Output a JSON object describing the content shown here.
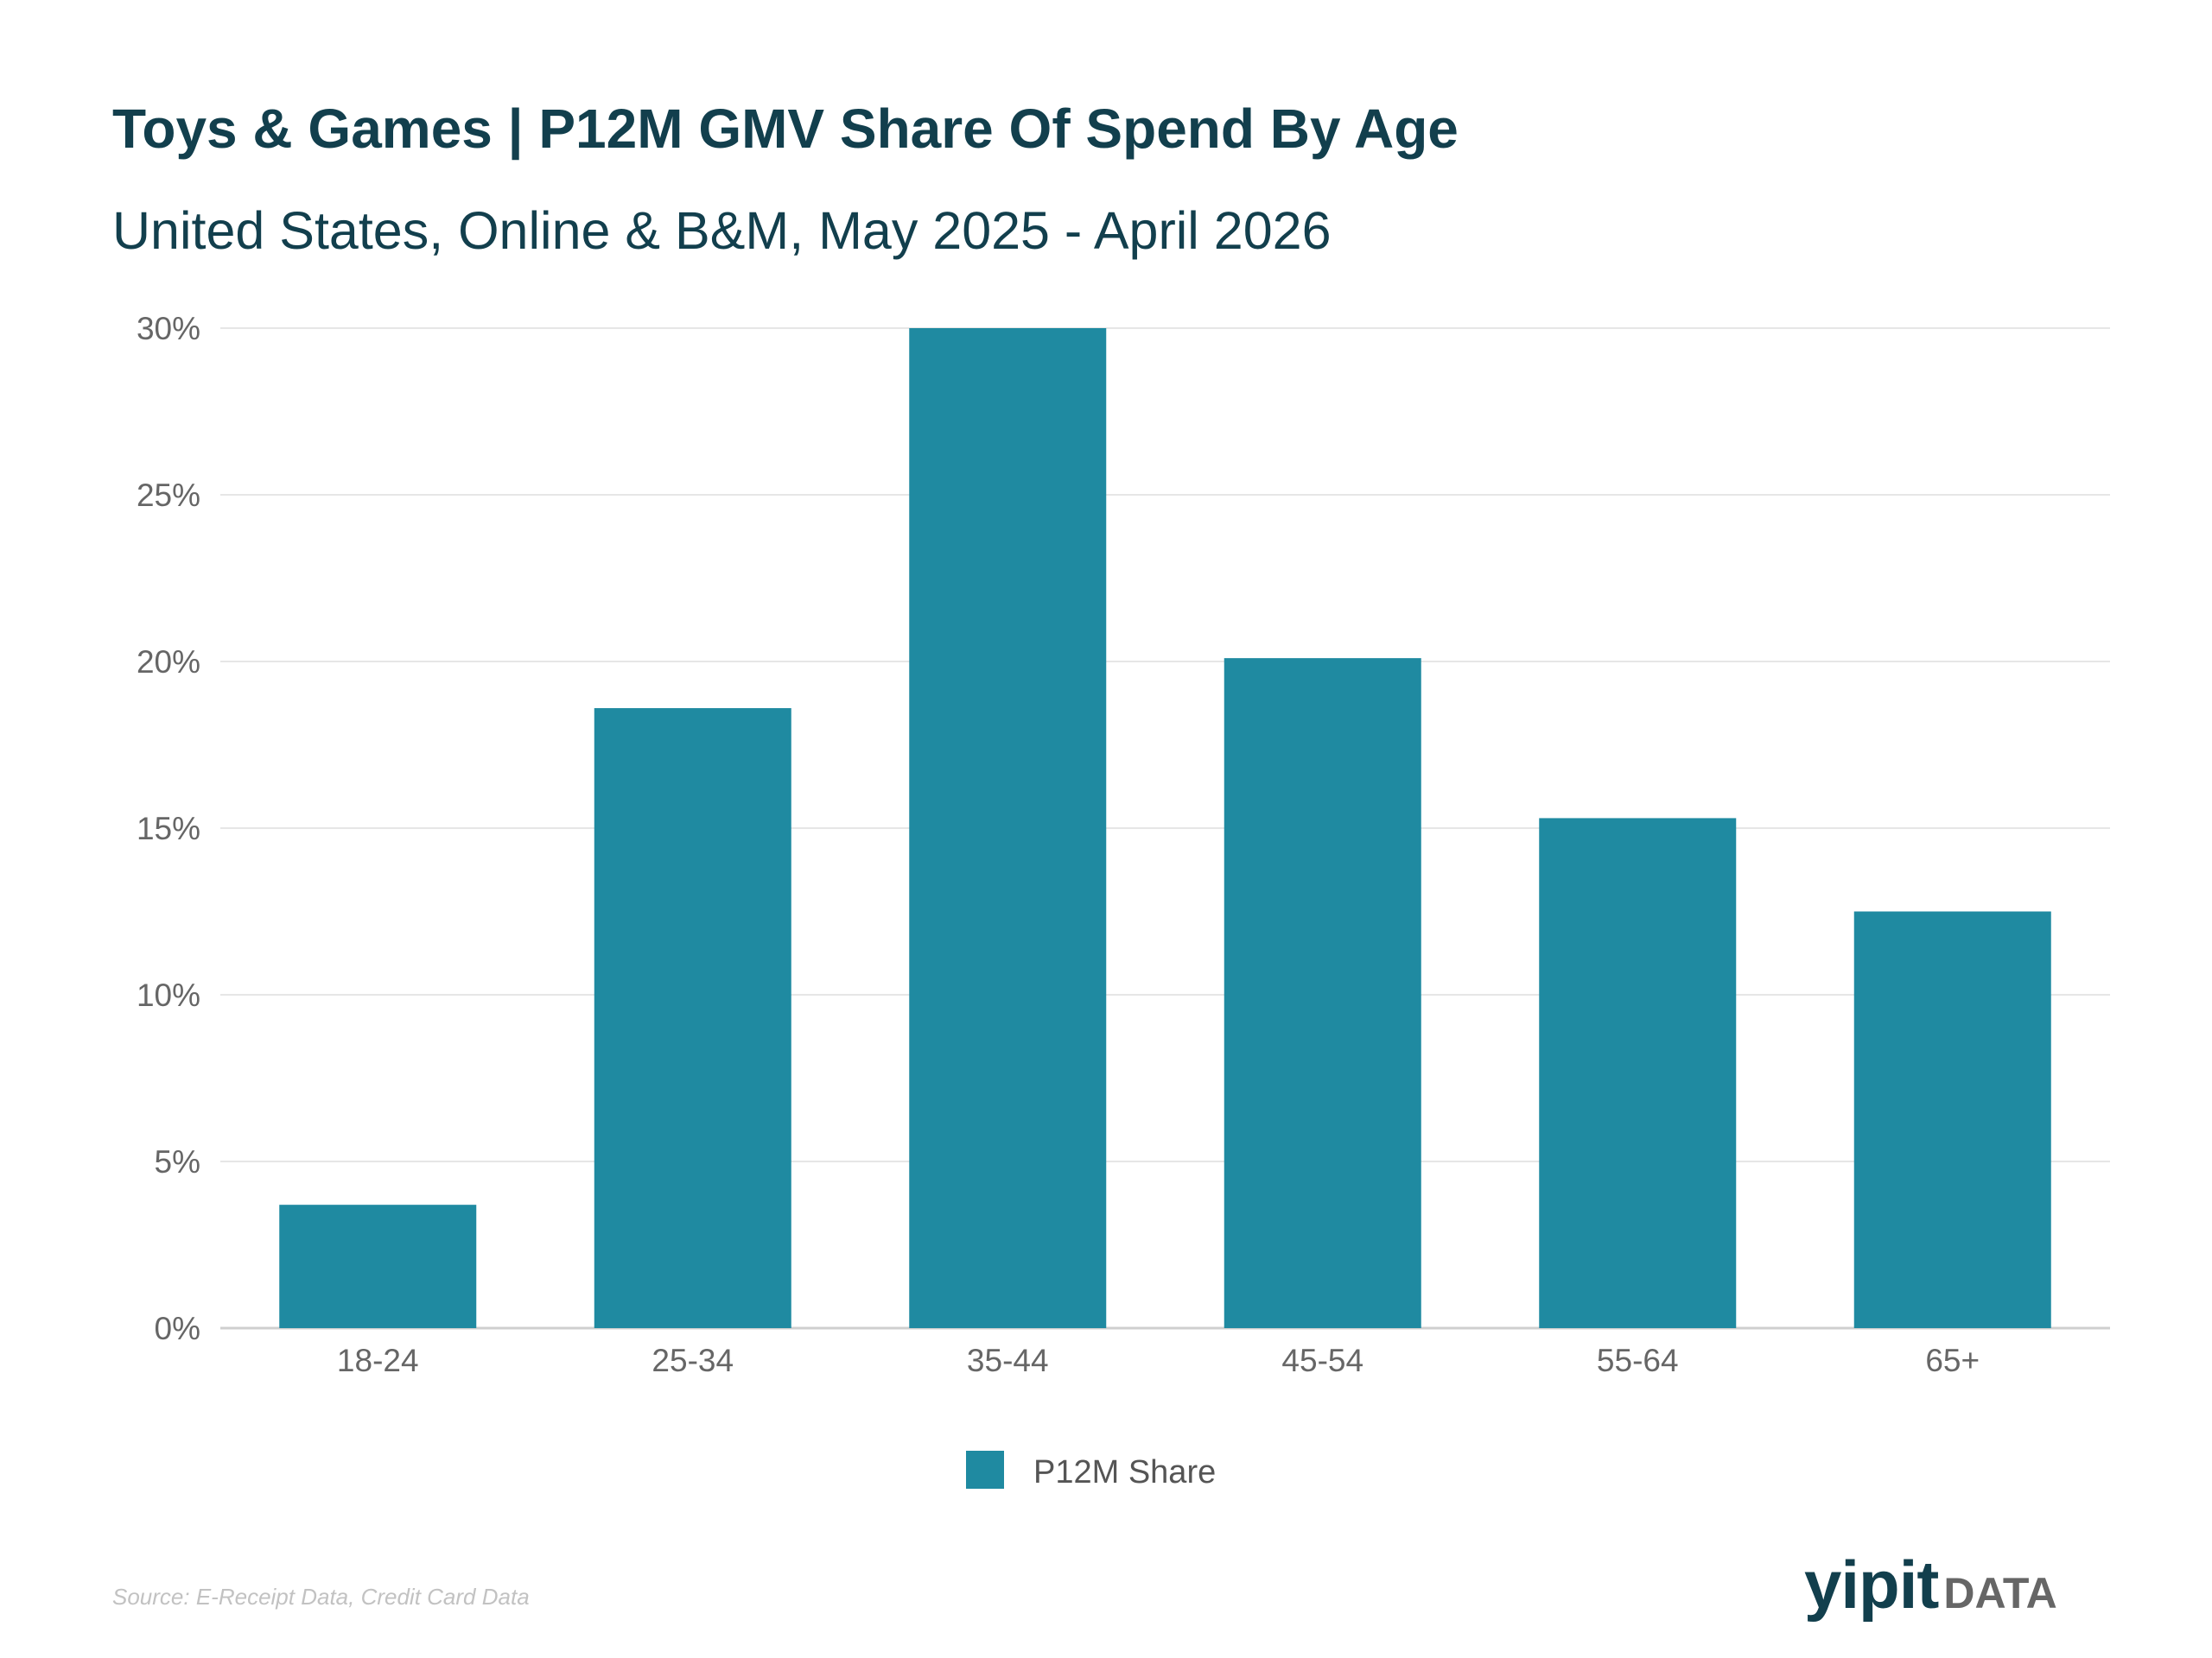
{
  "header": {
    "title": "Toys & Games | P12M GMV Share Of Spend By Age",
    "subtitle": "United States, Online & B&M, May 2025 - April 2026"
  },
  "footer": {
    "source": "Source: E-Receipt Data, Credit Card Data",
    "logo_primary": "yipit",
    "logo_secondary": "DATA"
  },
  "colors": {
    "bar": "#1f8aa1",
    "title": "#123f4d",
    "gridline": "#e6e6e6",
    "axis_text": "#666666"
  },
  "chart_data": {
    "type": "bar",
    "categories": [
      "18-24",
      "25-34",
      "35-44",
      "45-54",
      "55-64",
      "65+"
    ],
    "series": [
      {
        "name": "P12M Share",
        "values": [
          3.7,
          18.6,
          30.0,
          20.1,
          15.3,
          12.5
        ]
      }
    ],
    "y_ticks": [
      "0%",
      "5%",
      "10%",
      "15%",
      "20%",
      "25%",
      "30%"
    ],
    "ylim": [
      0,
      30
    ],
    "ylabel_unit": "%",
    "grid": true,
    "legend_placement": "bottom-center"
  }
}
